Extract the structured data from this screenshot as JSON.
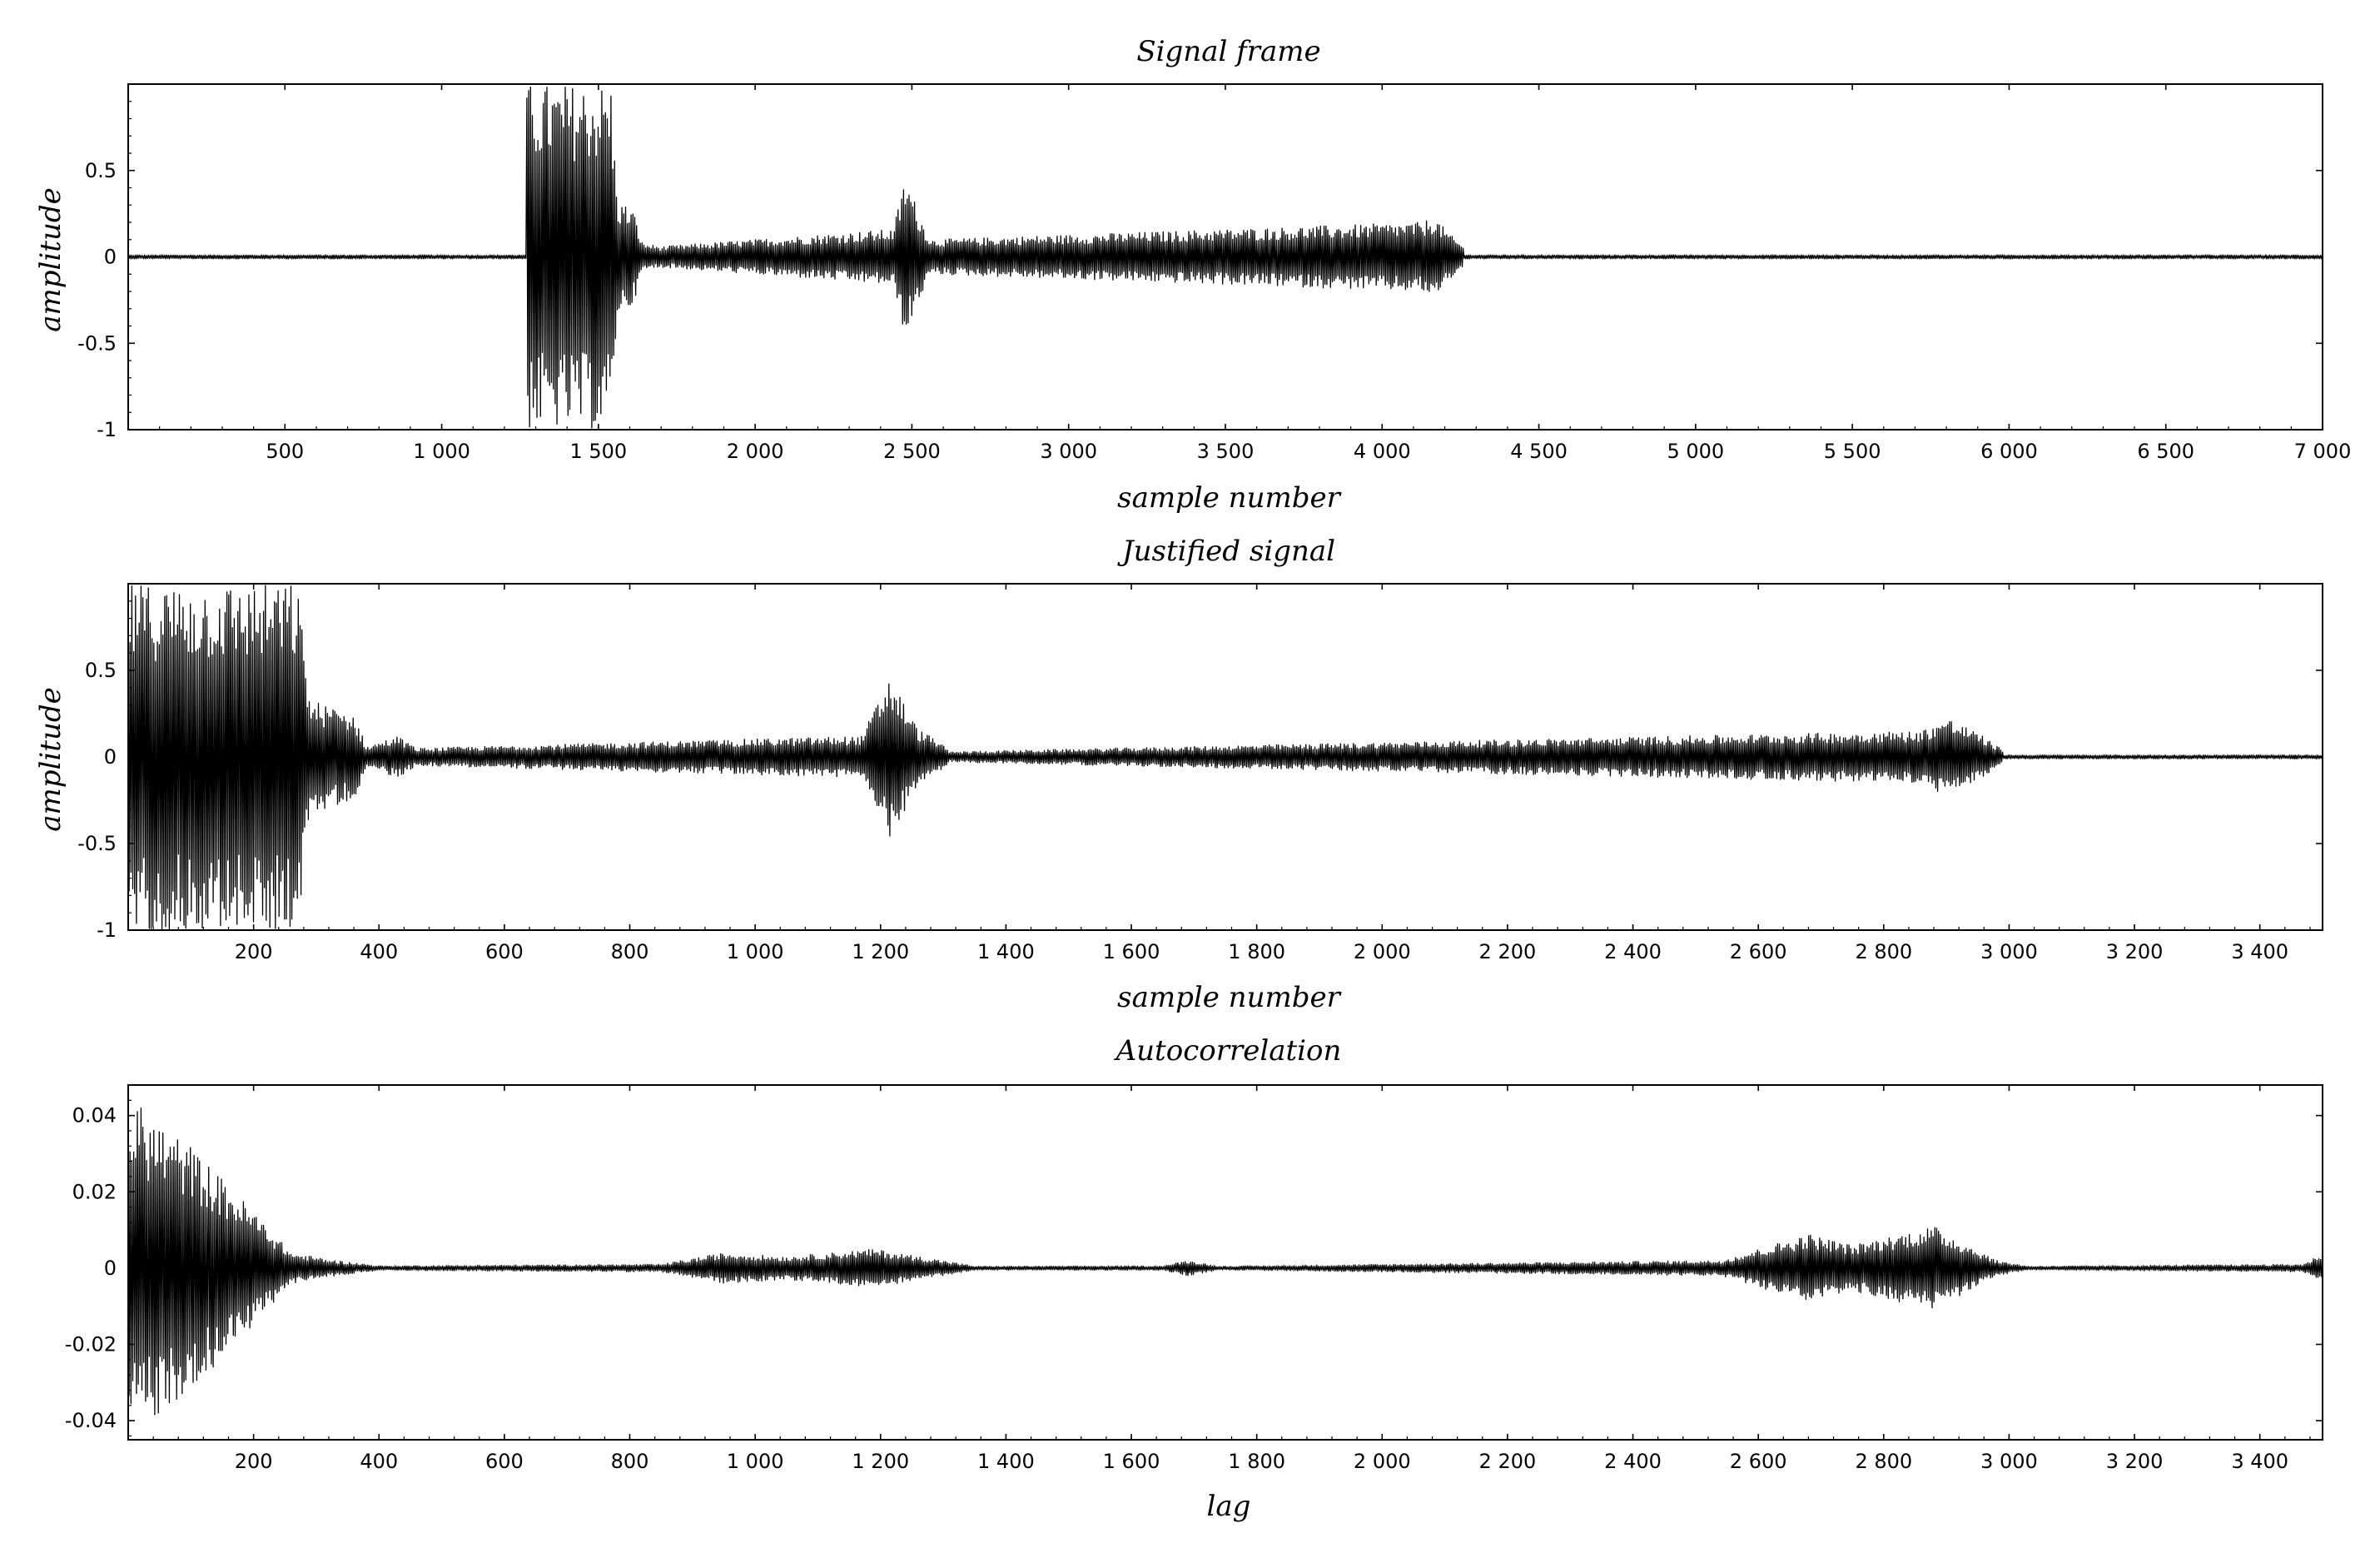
{
  "chart_data": [
    {
      "id": "signal-frame",
      "type": "line",
      "title": "Signal frame",
      "xlabel": "sample number",
      "ylabel": "amplitude",
      "xlim": [
        0,
        7000
      ],
      "ylim": [
        -1,
        1
      ],
      "xticks": [
        500,
        1000,
        1500,
        2000,
        2500,
        3000,
        3500,
        4000,
        4500,
        5000,
        5500,
        6000,
        6500,
        7000
      ],
      "xtick_labels": [
        "500",
        "1 000",
        "1 500",
        "2 000",
        "2 500",
        "3 000",
        "3 500",
        "4 000",
        "4 500",
        "5 000",
        "5 500",
        "6 000",
        "6 500",
        "7 000"
      ],
      "yticks": [
        -1,
        -0.5,
        0,
        0.5
      ],
      "ytick_labels": [
        "-1",
        "-0.5",
        "0",
        "0.5"
      ],
      "series": [
        {
          "color": "#000000",
          "baseline_noise": 0.012,
          "envelope": [
            [
              1270,
              1.0
            ],
            [
              1540,
              1.0
            ],
            [
              1560,
              0.33
            ],
            [
              1610,
              0.28
            ],
            [
              1640,
              0.08
            ],
            [
              1700,
              0.06
            ],
            [
              2440,
              0.16
            ],
            [
              2480,
              0.47
            ],
            [
              2530,
              0.22
            ],
            [
              2560,
              0.1
            ],
            [
              4130,
              0.2
            ],
            [
              4165,
              0.24
            ],
            [
              4210,
              0.14
            ],
            [
              4260,
              0.06
            ]
          ]
        }
      ]
    },
    {
      "id": "justified-signal",
      "type": "line",
      "title": "Justified signal",
      "xlabel": "sample number",
      "ylabel": "amplitude",
      "xlim": [
        0,
        3500
      ],
      "ylim": [
        -1,
        1
      ],
      "xticks": [
        200,
        400,
        600,
        800,
        1000,
        1200,
        1400,
        1600,
        1800,
        2000,
        2200,
        2400,
        2600,
        2800,
        3000,
        3200,
        3400
      ],
      "xtick_labels": [
        "200",
        "400",
        "600",
        "800",
        "1 000",
        "1 200",
        "1 400",
        "1 600",
        "1 800",
        "2 000",
        "2 200",
        "2 400",
        "2 600",
        "2 800",
        "3 000",
        "3 200",
        "3 400"
      ],
      "yticks": [
        -1,
        -0.5,
        0,
        0.5
      ],
      "ytick_labels": [
        "-1",
        "-0.5",
        "0",
        "0.5"
      ],
      "series": [
        {
          "color": "#000000",
          "baseline_noise": 0.012,
          "envelope": [
            [
              0,
              1.0
            ],
            [
              270,
              1.0
            ],
            [
              290,
              0.33
            ],
            [
              360,
              0.25
            ],
            [
              380,
              0.06
            ],
            [
              430,
              0.12
            ],
            [
              460,
              0.05
            ],
            [
              1170,
              0.12
            ],
            [
              1215,
              0.47
            ],
            [
              1260,
              0.16
            ],
            [
              1290,
              0.1
            ],
            [
              1310,
              0.03
            ],
            [
              2860,
              0.15
            ],
            [
              2900,
              0.23
            ],
            [
              2950,
              0.14
            ],
            [
              2990,
              0.04
            ]
          ]
        }
      ]
    },
    {
      "id": "autocorrelation",
      "type": "line",
      "title": "Autocorrelation",
      "xlabel": "lag",
      "ylabel": "",
      "xlim": [
        0,
        3500
      ],
      "ylim": [
        -0.045,
        0.048
      ],
      "xticks": [
        200,
        400,
        600,
        800,
        1000,
        1200,
        1400,
        1600,
        1800,
        2000,
        2200,
        2400,
        2600,
        2800,
        3000,
        3200,
        3400
      ],
      "xtick_labels": [
        "200",
        "400",
        "600",
        "800",
        "1 000",
        "1 200",
        "1 400",
        "1 600",
        "1 800",
        "2 000",
        "2 200",
        "2 400",
        "2 600",
        "2 800",
        "3 000",
        "3 200",
        "3 400"
      ],
      "yticks": [
        -0.04,
        -0.02,
        0,
        0.02,
        0.04
      ],
      "ytick_labels": [
        "-0.04",
        "-0.02",
        "0",
        "0.02",
        "0.04"
      ],
      "series": [
        {
          "color": "#000000",
          "baseline_noise": 0.0002,
          "envelope": [
            [
              0,
              0.045
            ],
            [
              100,
              0.032
            ],
            [
              200,
              0.015
            ],
            [
              260,
              0.004
            ],
            [
              330,
              0.002
            ],
            [
              400,
              0.0006
            ],
            [
              850,
              0.001
            ],
            [
              950,
              0.004
            ],
            [
              1050,
              0.003
            ],
            [
              1190,
              0.005
            ],
            [
              1300,
              0.002
            ],
            [
              1350,
              0.0005
            ],
            [
              1650,
              0.0006
            ],
            [
              1690,
              0.002
            ],
            [
              1740,
              0.0005
            ],
            [
              2540,
              0.002
            ],
            [
              2680,
              0.009
            ],
            [
              2750,
              0.006
            ],
            [
              2880,
              0.011
            ],
            [
              2980,
              0.002
            ],
            [
              3030,
              0.0005
            ],
            [
              3470,
              0.001
            ],
            [
              3500,
              0.004
            ]
          ]
        }
      ]
    }
  ]
}
